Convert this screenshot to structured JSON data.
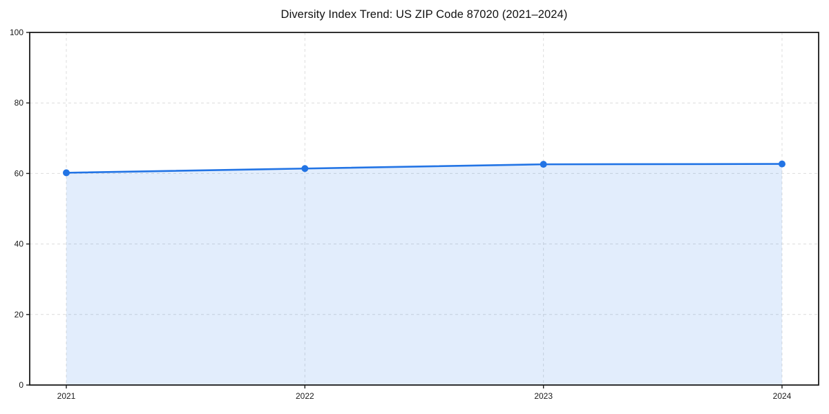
{
  "page": {
    "background": "#ffffff"
  },
  "chart_data": {
    "type": "area",
    "title": "Diversity Index Trend: US ZIP Code 87020 (2021–2024)",
    "x": [
      2021,
      2022,
      2023,
      2024
    ],
    "xtick_labels": [
      "2021",
      "2022",
      "2023",
      "2024"
    ],
    "values": [
      60.2,
      61.4,
      62.6,
      62.7
    ],
    "ylim": [
      0,
      100
    ],
    "yticks": [
      0,
      20,
      40,
      60,
      80,
      100
    ],
    "ytick_labels": [
      "0",
      "20",
      "40",
      "60",
      "80",
      "100"
    ],
    "xlabel": "",
    "ylabel": "",
    "grid": true,
    "grid_style": "dashed",
    "legend": "none",
    "colors": {
      "line": "#2274e5",
      "marker": "#2274e5",
      "fill": "rgba(34,116,229,0.13)",
      "grid": "#dcdcdc",
      "spine": "#1a1a1a",
      "tick_text": "#1a1a1a",
      "title_text": "#111111",
      "background": "#ffffff"
    }
  }
}
